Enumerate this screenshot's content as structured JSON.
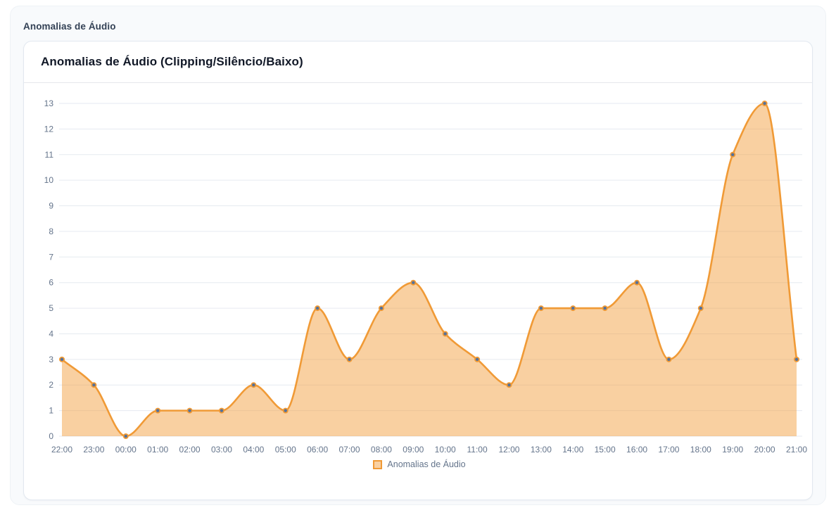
{
  "page": {
    "section_title": "Anomalias de Áudio"
  },
  "card": {
    "title": "Anomalias de Áudio (Clipping/Silêncio/Baixo)"
  },
  "legend": {
    "label": "Anomalias de Áudio"
  },
  "colors": {
    "line": "#F09A36",
    "fill": "rgba(242, 156, 56, 0.47)",
    "point_fill": "#54719B",
    "grid": "#E6EAF0",
    "axis_text": "#64748B",
    "card_title": "#111827",
    "section_title": "#334155"
  },
  "chart_data": {
    "type": "area",
    "title": "Anomalias de Áudio (Clipping/Silêncio/Baixo)",
    "series_name": "Anomalias de Áudio",
    "x": [
      "22:00",
      "23:00",
      "00:00",
      "01:00",
      "02:00",
      "03:00",
      "04:00",
      "05:00",
      "06:00",
      "07:00",
      "08:00",
      "09:00",
      "10:00",
      "11:00",
      "12:00",
      "13:00",
      "14:00",
      "15:00",
      "16:00",
      "17:00",
      "18:00",
      "19:00",
      "20:00",
      "21:00"
    ],
    "values": [
      3,
      2,
      0,
      1,
      1,
      1,
      2,
      1,
      5,
      3,
      5,
      6,
      4,
      3,
      2,
      5,
      5,
      5,
      6,
      3,
      5,
      11,
      13,
      3
    ],
    "ylim": [
      0,
      13
    ],
    "y_ticks": [
      0,
      1,
      2,
      3,
      4,
      5,
      6,
      7,
      8,
      9,
      10,
      11,
      12,
      13
    ],
    "xlabel": "",
    "ylabel": "",
    "grid": "horizontal",
    "legend_position": "bottom",
    "smoothing": "monotone"
  }
}
